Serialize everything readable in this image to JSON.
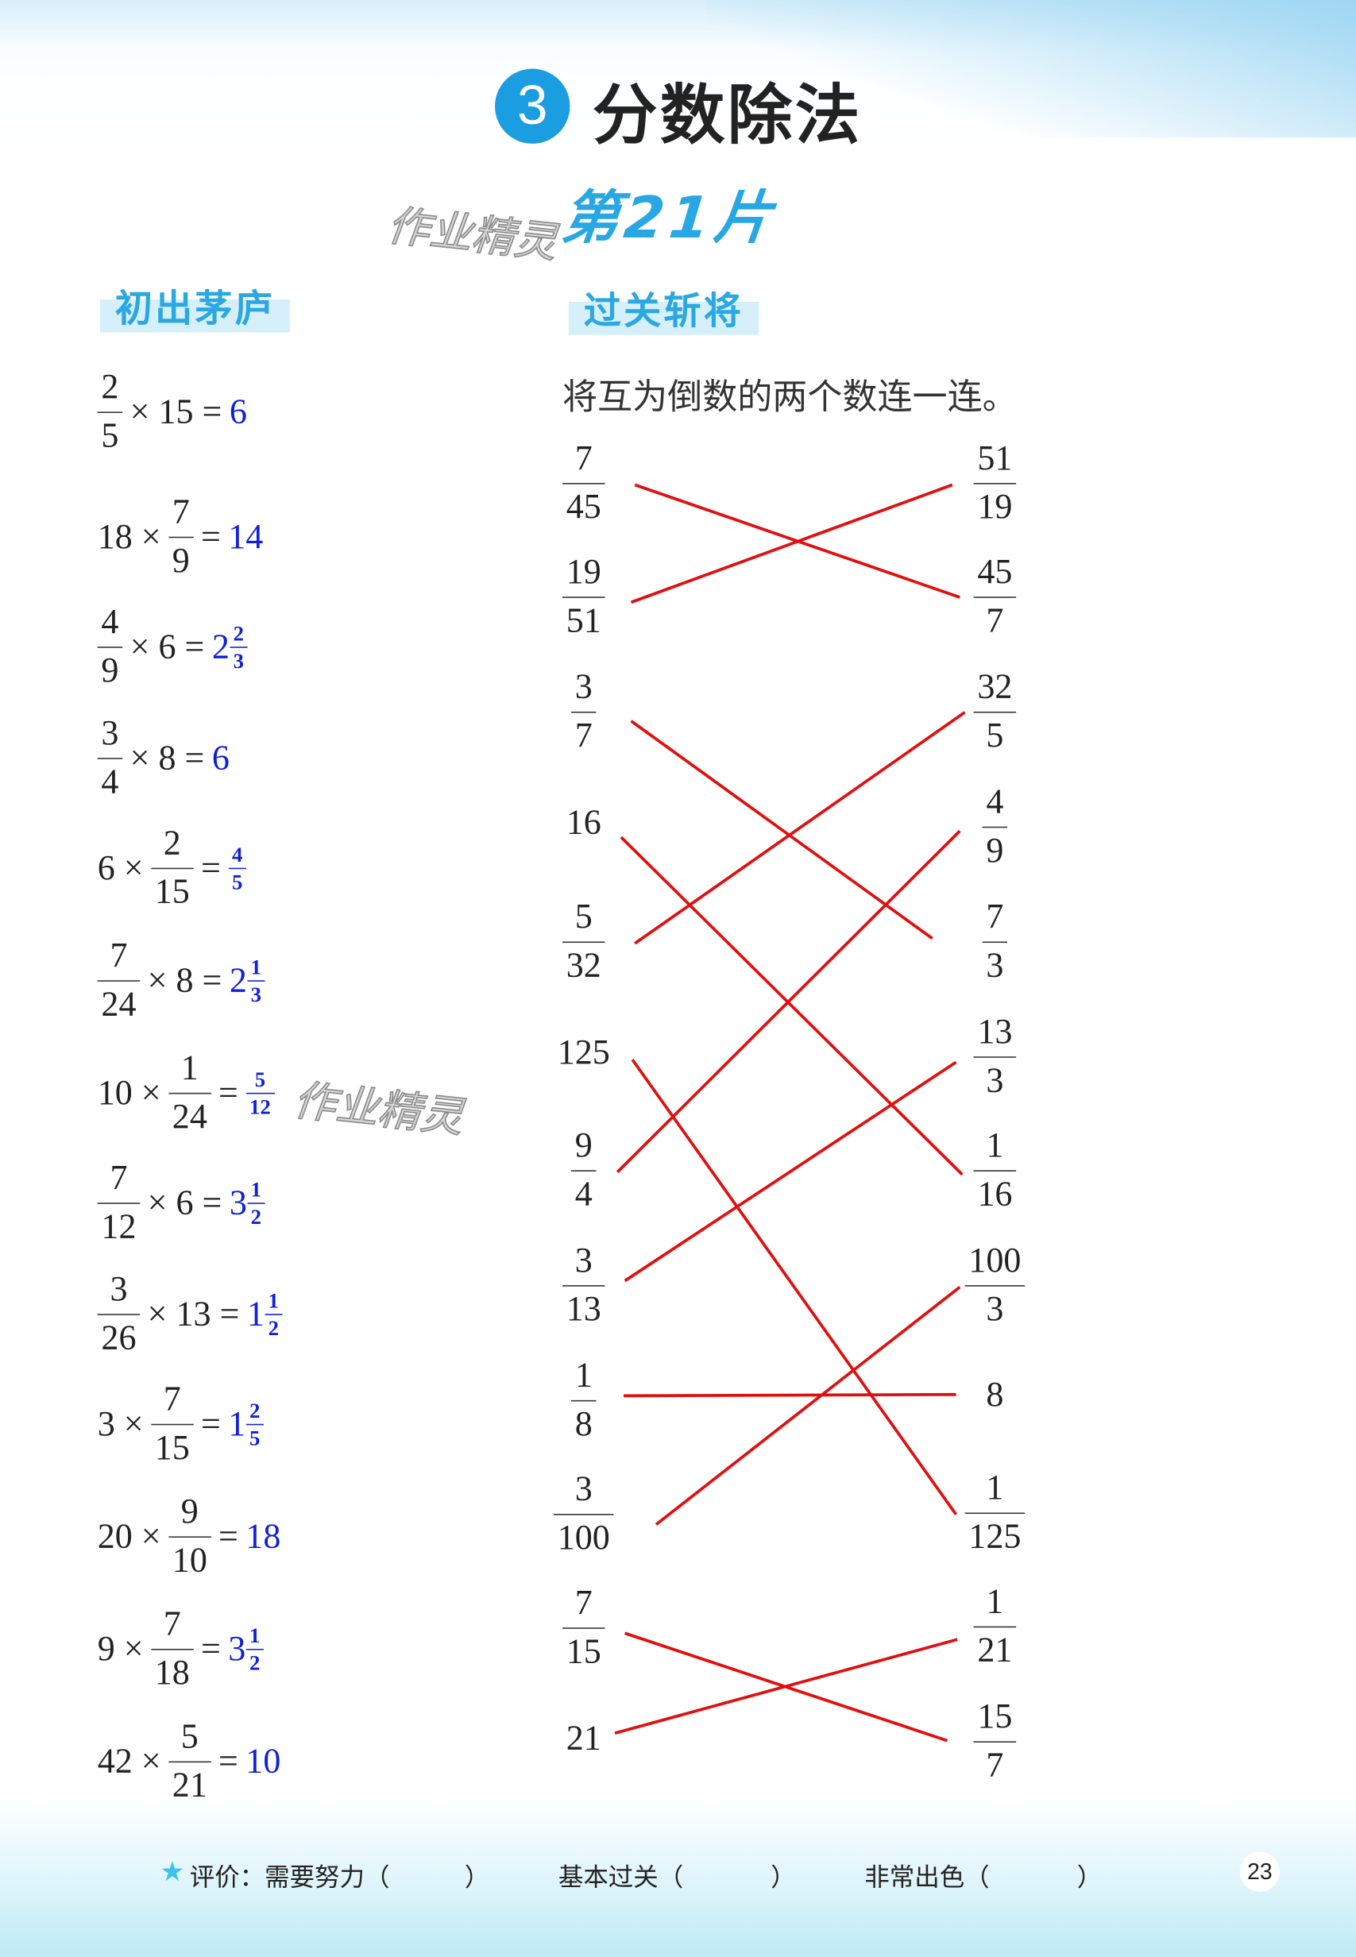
{
  "header": {
    "chapter_number": "3",
    "chapter_title": "分数除法",
    "lesson": "第21片",
    "watermark": "作业精灵"
  },
  "section_left": {
    "title": "初出茅庐"
  },
  "section_right": {
    "title": "过关斩将",
    "instruction": "将互为倒数的两个数连一连。"
  },
  "answer_color": "#1020d8",
  "line_color": "#e01010",
  "problems": [
    {
      "tokens": [
        {
          "f": [
            "2",
            "5"
          ]
        },
        {
          "t": "× 15 ="
        }
      ],
      "ans": {
        "w": "6"
      }
    },
    {
      "tokens": [
        {
          "t": "18 ×"
        },
        {
          "f": [
            "7",
            "9"
          ]
        },
        {
          "t": "="
        }
      ],
      "ans": {
        "w": "14"
      }
    },
    {
      "tokens": [
        {
          "f": [
            "4",
            "9"
          ]
        },
        {
          "t": "× 6 ="
        }
      ],
      "ans": {
        "w": "2",
        "f": [
          "2",
          "3"
        ]
      }
    },
    {
      "tokens": [
        {
          "f": [
            "3",
            "4"
          ]
        },
        {
          "t": "× 8 ="
        }
      ],
      "ans": {
        "w": "6"
      }
    },
    {
      "tokens": [
        {
          "t": "6 ×"
        },
        {
          "f": [
            "2",
            "15"
          ]
        },
        {
          "t": "="
        }
      ],
      "ans": {
        "f": [
          "4",
          "5"
        ]
      }
    },
    {
      "tokens": [
        {
          "f": [
            "7",
            "24"
          ]
        },
        {
          "t": "× 8 ="
        }
      ],
      "ans": {
        "w": "2",
        "f": [
          "1",
          "3"
        ]
      }
    },
    {
      "tokens": [
        {
          "t": "10 ×"
        },
        {
          "f": [
            "1",
            "24"
          ]
        },
        {
          "t": "="
        }
      ],
      "ans": {
        "f": [
          "5",
          "12"
        ]
      }
    },
    {
      "tokens": [
        {
          "f": [
            "7",
            "12"
          ]
        },
        {
          "t": "× 6 ="
        }
      ],
      "ans": {
        "w": "3",
        "f": [
          "1",
          "2"
        ]
      }
    },
    {
      "tokens": [
        {
          "f": [
            "3",
            "26"
          ]
        },
        {
          "t": "× 13 ="
        }
      ],
      "ans": {
        "w": "1",
        "f": [
          "1",
          "2"
        ]
      }
    },
    {
      "tokens": [
        {
          "t": "3 ×"
        },
        {
          "f": [
            "7",
            "15"
          ]
        },
        {
          "t": "="
        }
      ],
      "ans": {
        "w": "1",
        "f": [
          "2",
          "5"
        ]
      }
    },
    {
      "tokens": [
        {
          "t": "20 ×"
        },
        {
          "f": [
            "9",
            "10"
          ]
        },
        {
          "t": "="
        }
      ],
      "ans": {
        "w": "18"
      }
    },
    {
      "tokens": [
        {
          "t": "9 ×"
        },
        {
          "f": [
            "7",
            "18"
          ]
        },
        {
          "t": "="
        }
      ],
      "ans": {
        "w": "3",
        "f": [
          "1",
          "2"
        ]
      }
    },
    {
      "tokens": [
        {
          "t": "42 ×"
        },
        {
          "f": [
            "5",
            "21"
          ]
        },
        {
          "t": "="
        }
      ],
      "ans": {
        "w": "10"
      }
    }
  ],
  "match_left": [
    {
      "f": [
        "7",
        "45"
      ]
    },
    {
      "f": [
        "19",
        "51"
      ]
    },
    {
      "f": [
        "3",
        "7"
      ]
    },
    {
      "t": "16"
    },
    {
      "f": [
        "5",
        "32"
      ]
    },
    {
      "t": "125"
    },
    {
      "f": [
        "9",
        "4"
      ]
    },
    {
      "f": [
        "3",
        "13"
      ]
    },
    {
      "f": [
        "1",
        "8"
      ]
    },
    {
      "f": [
        "3",
        "100"
      ]
    },
    {
      "f": [
        "7",
        "15"
      ]
    },
    {
      "t": "21"
    }
  ],
  "match_right": [
    {
      "f": [
        "51",
        "19"
      ]
    },
    {
      "f": [
        "45",
        "7"
      ]
    },
    {
      "f": [
        "32",
        "5"
      ]
    },
    {
      "f": [
        "4",
        "9"
      ]
    },
    {
      "f": [
        "7",
        "3"
      ]
    },
    {
      "f": [
        "13",
        "3"
      ]
    },
    {
      "f": [
        "1",
        "16"
      ]
    },
    {
      "f": [
        "100",
        "3"
      ]
    },
    {
      "t": "8"
    },
    {
      "f": [
        "1",
        "125"
      ]
    },
    {
      "f": [
        "1",
        "21"
      ]
    },
    {
      "f": [
        "15",
        "7"
      ]
    }
  ],
  "connections": [
    [
      0,
      1
    ],
    [
      1,
      0
    ],
    [
      2,
      4
    ],
    [
      3,
      6
    ],
    [
      4,
      2
    ],
    [
      5,
      9
    ],
    [
      6,
      3
    ],
    [
      7,
      5
    ],
    [
      8,
      8
    ],
    [
      9,
      7
    ],
    [
      10,
      11
    ],
    [
      11,
      10
    ]
  ],
  "footer": {
    "label": "评价：",
    "options": [
      "需要努力（",
      "基本过关（",
      "非常出色（"
    ],
    "close": "）",
    "page_number": "23"
  }
}
